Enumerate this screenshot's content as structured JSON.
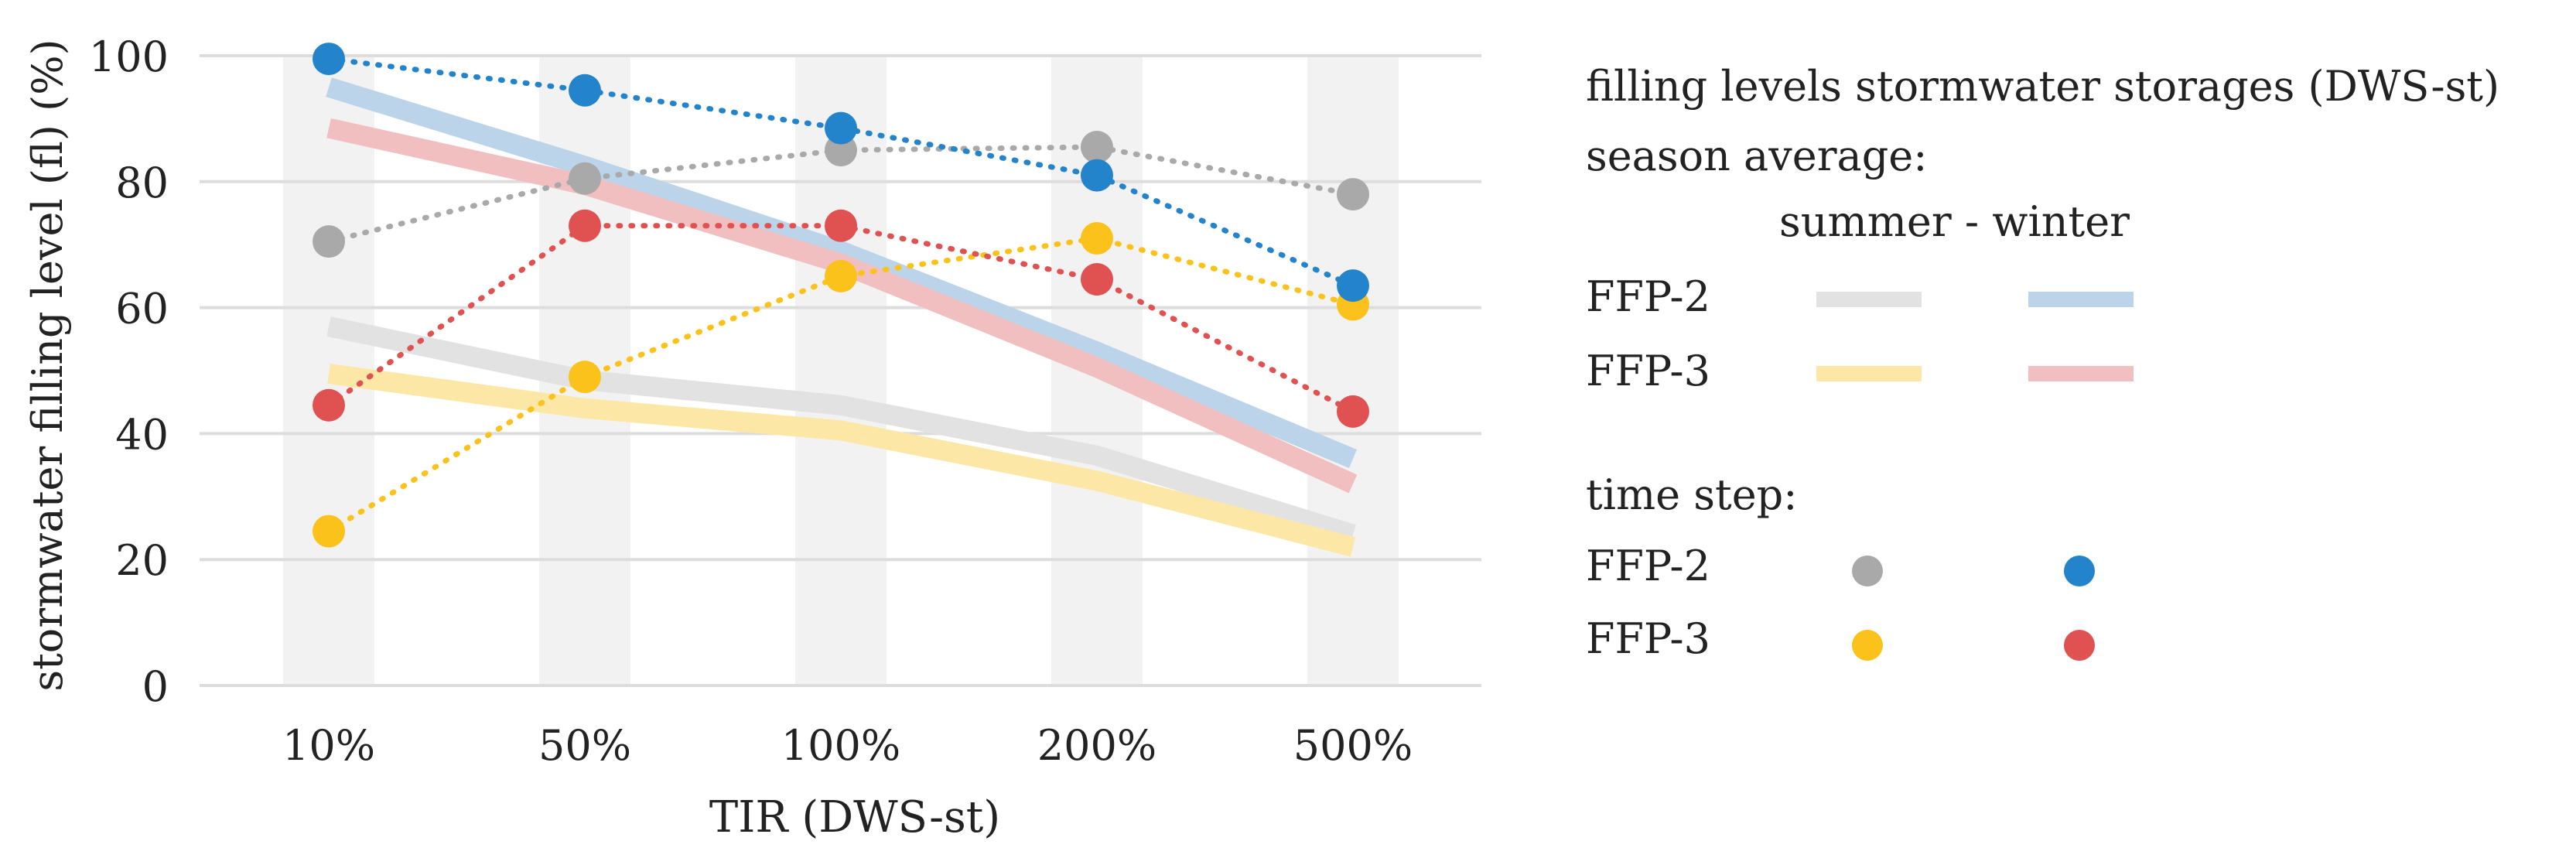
{
  "chart_data": {
    "type": "line",
    "title": "",
    "xlabel": "TIR (DWS-st)",
    "ylabel": "stormwater filling level (fl) (%)",
    "ylim": [
      0,
      100
    ],
    "yticks": [
      "0",
      "20",
      "40",
      "60",
      "80",
      "100"
    ],
    "categories": [
      "10%",
      "50%",
      "100%",
      "200%",
      "500%"
    ],
    "grid": "horizontal",
    "averages": [
      {
        "name": "FFP-2 summer season average",
        "style": "thick-line",
        "color": "#e2e2e2",
        "values": [
          57,
          48.5,
          44.5,
          36.5,
          24
        ]
      },
      {
        "name": "FFP-3 summer season average",
        "style": "thick-line",
        "color": "#fde7a6",
        "values": [
          49.5,
          44,
          40.5,
          32.5,
          22
        ]
      },
      {
        "name": "FFP-2 winter season average",
        "style": "thick-line",
        "color": "#bcd4ea",
        "values": [
          95,
          82.5,
          69,
          53,
          36
        ]
      },
      {
        "name": "FFP-3 winter season average",
        "style": "thick-line",
        "color": "#f2bfc1",
        "values": [
          88.5,
          79.5,
          67,
          50.5,
          32
        ]
      }
    ],
    "time_steps": [
      {
        "name": "FFP-2 summer time step",
        "style": "dotted-markers",
        "color": "#a9a9a9",
        "values": [
          70.5,
          80.5,
          85,
          85.5,
          78
        ]
      },
      {
        "name": "FFP-3 summer time step",
        "style": "dotted-markers",
        "color": "#fbc21c",
        "values": [
          24.5,
          49,
          65,
          71,
          60.5
        ]
      },
      {
        "name": "FFP-3 winter time step",
        "style": "dotted-markers",
        "color": "#e05152",
        "values": [
          44.5,
          73,
          73,
          64.5,
          43.5
        ]
      },
      {
        "name": "FFP-2 winter time step",
        "style": "dotted-markers",
        "color": "#2384cb",
        "values": [
          99.5,
          94.5,
          88.5,
          81,
          63.5
        ]
      }
    ]
  },
  "legend": {
    "title": "filling levels stormwater storages (DWS-st)",
    "season_heading": "season average:",
    "season_columns": "summer - winter",
    "timestep_heading": "time step:",
    "rows": [
      "FFP-2",
      "FFP-3"
    ],
    "colors": {
      "ffp2_summer_avg": "#e2e2e2",
      "ffp2_winter_avg": "#bcd4ea",
      "ffp3_summer_avg": "#fde7a6",
      "ffp3_winter_avg": "#f2bfc1",
      "ffp2_summer_step": "#a9a9a9",
      "ffp2_winter_step": "#2384cb",
      "ffp3_summer_step": "#fbc21c",
      "ffp3_winter_step": "#e05152"
    }
  }
}
